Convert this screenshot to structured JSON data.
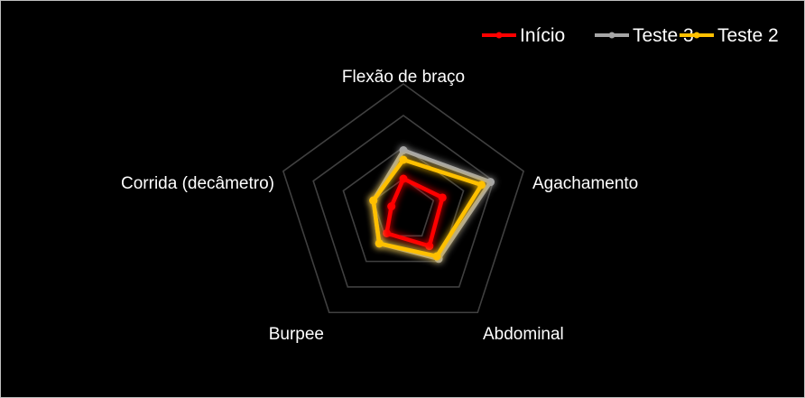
{
  "chart_data": {
    "type": "radar",
    "title": "",
    "categories": [
      "Flexão de braço",
      "Agachamento",
      "Abdominal",
      "Burpee",
      "Corrida (decâmetro)"
    ],
    "rmax": 4,
    "grid_rings": 4,
    "gridlines": true,
    "legend_position": "top-right",
    "series": [
      {
        "name": "Início",
        "color": "#ff0000",
        "values": [
          1.0,
          1.3,
          1.4,
          0.9,
          0.4
        ]
      },
      {
        "name": "Teste 3",
        "color": "#a6a6a6",
        "values": [
          1.9,
          2.9,
          1.9,
          1.3,
          1.0
        ]
      },
      {
        "name": "Teste 2",
        "color": "#ffc000",
        "values": [
          1.6,
          2.6,
          1.8,
          1.3,
          1.0
        ]
      }
    ],
    "draw_order": [
      0,
      1,
      2
    ]
  }
}
